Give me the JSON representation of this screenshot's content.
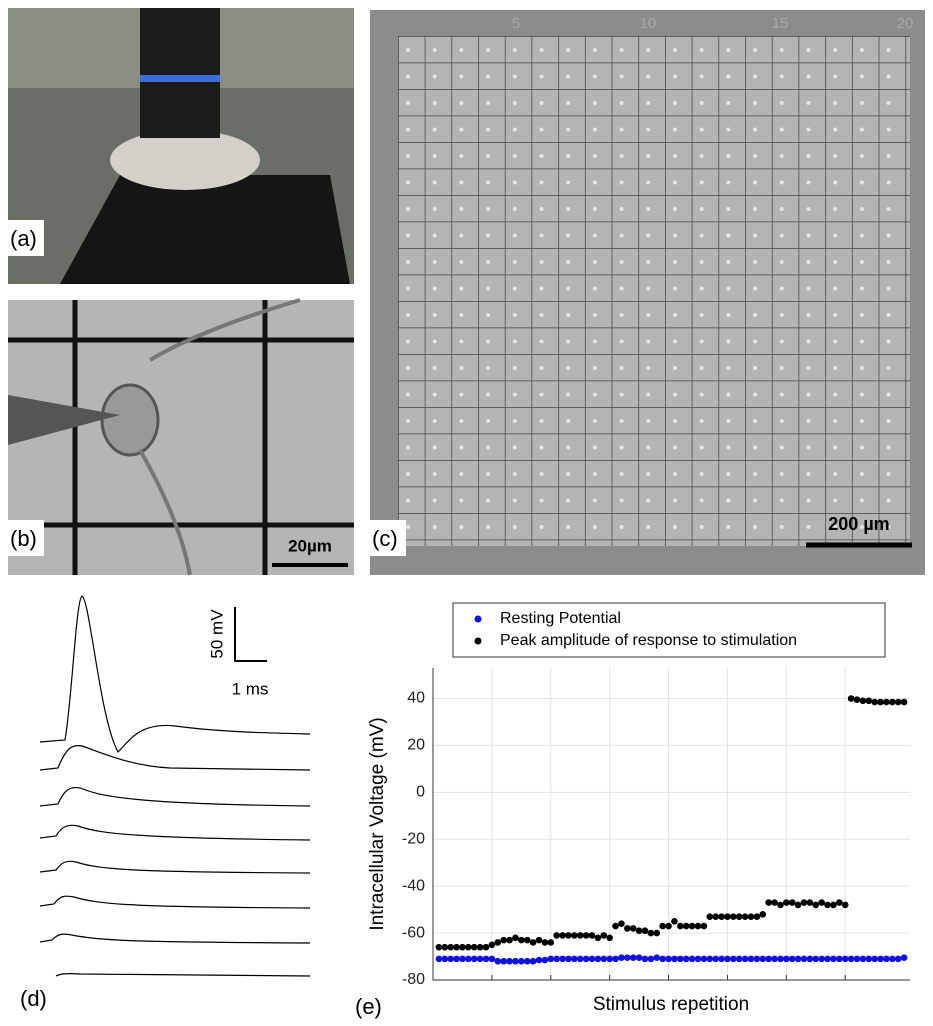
{
  "panels": {
    "a": {
      "label": "(a)"
    },
    "b": {
      "label": "(b)",
      "scale_bar": "20µm"
    },
    "c": {
      "label": "(c)",
      "scale_bar": "200 µm",
      "grid_numbers": [
        "5",
        "10",
        "15",
        "20"
      ]
    },
    "d": {
      "label": "(d)",
      "scale_y": "50 mV",
      "scale_x": "1 ms"
    },
    "e": {
      "label": "(e)"
    }
  },
  "chart_data": {
    "type": "scatter",
    "y_label": "Intracellular Voltage (mV)",
    "x_label": "Stimulus repetition",
    "x": [
      1,
      2,
      3,
      4,
      5,
      6,
      7,
      8,
      9,
      10,
      11,
      12,
      13,
      14,
      15,
      16,
      17,
      18,
      19,
      20,
      21,
      22,
      23,
      24,
      25,
      26,
      27,
      28,
      29,
      30,
      31,
      32,
      33,
      34,
      35,
      36,
      37,
      38,
      39,
      40,
      41,
      42,
      43,
      44,
      45,
      46,
      47,
      48,
      49,
      50,
      51,
      52,
      53,
      54,
      55,
      56,
      57,
      58,
      59,
      60,
      61,
      62,
      63,
      64,
      65,
      66,
      67,
      68,
      69,
      70,
      71,
      72,
      73,
      74,
      75,
      76,
      77,
      78,
      79,
      80
    ],
    "xlim": [
      0,
      81
    ],
    "xticks": [
      10,
      20,
      30,
      40,
      50,
      60,
      70
    ],
    "ylim": [
      -80,
      53
    ],
    "yticks": [
      -80,
      -60,
      -40,
      -20,
      0,
      20,
      40
    ],
    "grid": true,
    "series": [
      {
        "name": "Resting Potential",
        "color": "#1010e0",
        "values": [
          -71,
          -71,
          -71,
          -71,
          -71,
          -71,
          -71,
          -71,
          -71,
          -71,
          -72,
          -72,
          -72,
          -72,
          -72,
          -72,
          -72,
          -71.5,
          -71.5,
          -71,
          -71,
          -71,
          -71,
          -71,
          -71,
          -71,
          -71,
          -71,
          -71,
          -71,
          -71,
          -70.5,
          -70.5,
          -70.5,
          -70.5,
          -71,
          -71,
          -70.5,
          -71,
          -71,
          -71,
          -71,
          -71,
          -71,
          -71,
          -71,
          -71,
          -71,
          -71,
          -71,
          -71,
          -71,
          -71,
          -71,
          -71,
          -71,
          -71,
          -71,
          -71,
          -71,
          -71,
          -71,
          -71,
          -71,
          -71,
          -71,
          -71,
          -71,
          -71,
          -71,
          -71,
          -71,
          -71,
          -71,
          -71,
          -71,
          -71,
          -71,
          -71,
          -70.5
        ]
      },
      {
        "name": "Peak amplitude of response to stimulation",
        "color": "#000000",
        "values": [
          -66,
          -66,
          -66,
          -66,
          -66,
          -66,
          -66,
          -66,
          -66,
          -65,
          -64,
          -63,
          -63,
          -62,
          -63,
          -63,
          -64,
          -63,
          -64,
          -64,
          -61,
          -61,
          -61,
          -61,
          -61,
          -61,
          -61,
          -62,
          -61,
          -62,
          -57,
          -56,
          -58,
          -58,
          -59,
          -59,
          -60,
          -60,
          -57,
          -57,
          -55,
          -57,
          -57,
          -57,
          -57,
          -57,
          -53,
          -53,
          -53,
          -53,
          -53,
          -53,
          -53,
          -53,
          -53,
          -52,
          -47,
          -47,
          -48,
          -47,
          -47,
          -48,
          -47,
          -47,
          -48,
          -47,
          -48,
          -48,
          -47,
          -48,
          40,
          39.5,
          39,
          39,
          38.5,
          38.5,
          38.5,
          38.5,
          38.5,
          38.5
        ]
      }
    ]
  }
}
